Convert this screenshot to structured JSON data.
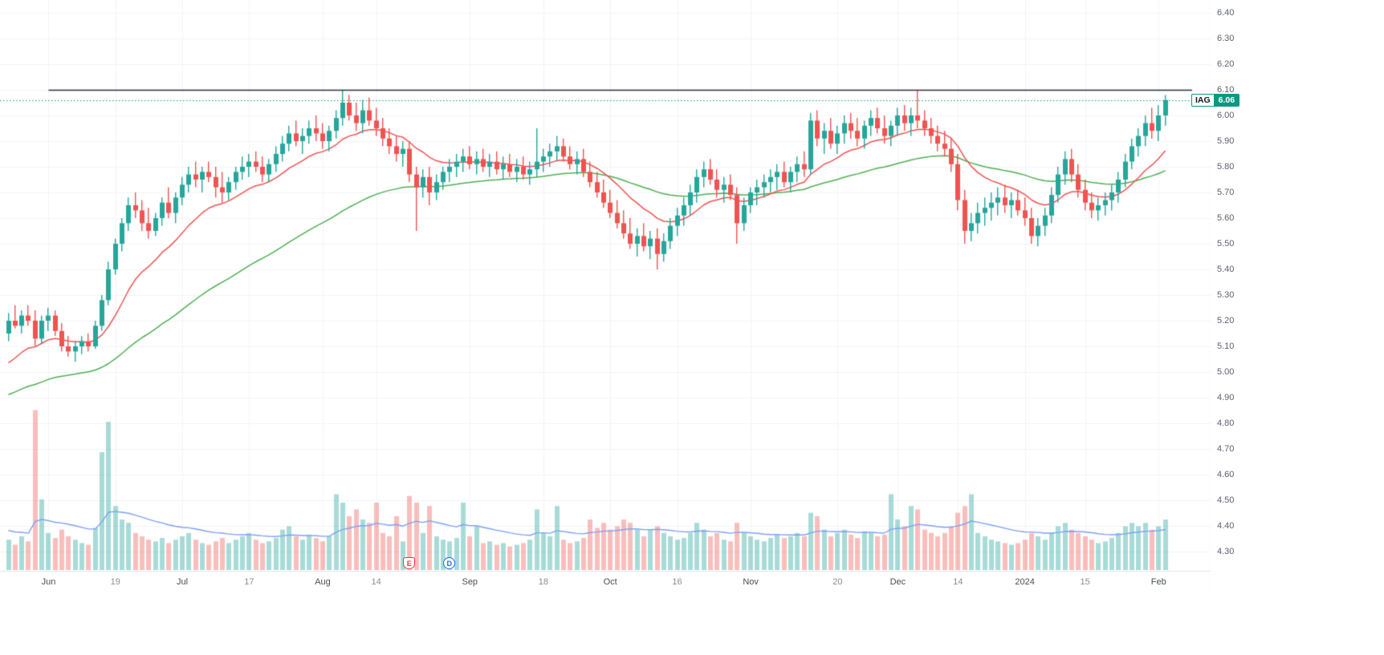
{
  "badge": {
    "ticker": "IAG",
    "price": "6.06"
  },
  "chart_data": {
    "type": "candlestick",
    "symbol": "IAG",
    "last_price": 6.06,
    "timeframe_hint": "daily, Jun 2023 - Feb 2024",
    "colors": {
      "up": "#26a69a",
      "down": "#ef5350",
      "volume_up": "rgba(38,166,154,0.40)",
      "volume_down": "rgba(239,83,80,0.38)",
      "ma_fast": "#ef5350",
      "ma_slow": "#4caf50",
      "volume_ma": "#7da0f4",
      "trendline": "#2a2e39",
      "current_price": "#089981",
      "grid": "#f1f3f8",
      "axis_separator": "#e3e6ed"
    },
    "price_axis": {
      "min": 4.3,
      "max": 6.4,
      "step": 0.1,
      "tick_labels": [
        "6.40",
        "6.30",
        "6.20",
        "6.10",
        "6.00",
        "5.90",
        "5.80",
        "5.70",
        "5.60",
        "5.50",
        "5.40",
        "5.30",
        "5.20",
        "5.10",
        "5.00",
        "4.90",
        "4.80",
        "4.70",
        "4.60",
        "4.50",
        "4.40",
        "4.30"
      ]
    },
    "time_axis": {
      "ticks": [
        {
          "i": 6,
          "label": "Jun",
          "kind": "month"
        },
        {
          "i": 16,
          "label": "19",
          "kind": "day"
        },
        {
          "i": 26,
          "label": "Jul",
          "kind": "month"
        },
        {
          "i": 36,
          "label": "17",
          "kind": "day"
        },
        {
          "i": 47,
          "label": "Aug",
          "kind": "month"
        },
        {
          "i": 55,
          "label": "14",
          "kind": "day"
        },
        {
          "i": 69,
          "label": "Sep",
          "kind": "month"
        },
        {
          "i": 80,
          "label": "18",
          "kind": "day"
        },
        {
          "i": 90,
          "label": "Oct",
          "kind": "month"
        },
        {
          "i": 100,
          "label": "16",
          "kind": "day"
        },
        {
          "i": 111,
          "label": "Nov",
          "kind": "month"
        },
        {
          "i": 124,
          "label": "20",
          "kind": "day"
        },
        {
          "i": 133,
          "label": "Dec",
          "kind": "month"
        },
        {
          "i": 142,
          "label": "14",
          "kind": "day"
        },
        {
          "i": 152,
          "label": "2024",
          "kind": "year"
        },
        {
          "i": 161,
          "label": "15",
          "kind": "day"
        },
        {
          "i": 172,
          "label": "Feb",
          "kind": "month"
        }
      ]
    },
    "horizontal_line": {
      "price": 6.1,
      "x1_index": 6,
      "x2_index": 177
    },
    "current_price_line": {
      "price": 6.06,
      "style": "dotted"
    },
    "markers": [
      {
        "i": 60,
        "label": "E",
        "kind": "earnings"
      },
      {
        "i": 66,
        "label": "D",
        "kind": "dividend"
      }
    ],
    "overlays": [
      {
        "name": "ma-fast",
        "period": 14,
        "seed": 5.01
      },
      {
        "name": "ma-slow",
        "period": 50,
        "seed": 4.9
      },
      {
        "name": "volume-ma",
        "period": 20,
        "seed": 24
      }
    ],
    "candles_ohlcv": [
      [
        5.15,
        5.23,
        5.12,
        5.2,
        18
      ],
      [
        5.2,
        5.26,
        5.17,
        5.18,
        15
      ],
      [
        5.18,
        5.24,
        5.15,
        5.22,
        20
      ],
      [
        5.22,
        5.26,
        5.18,
        5.2,
        17
      ],
      [
        5.2,
        5.24,
        5.1,
        5.13,
        95
      ],
      [
        5.13,
        5.22,
        5.11,
        5.2,
        42
      ],
      [
        5.2,
        5.25,
        5.16,
        5.22,
        22
      ],
      [
        5.22,
        5.24,
        5.14,
        5.16,
        19
      ],
      [
        5.16,
        5.19,
        5.08,
        5.1,
        24
      ],
      [
        5.1,
        5.14,
        5.06,
        5.08,
        20
      ],
      [
        5.08,
        5.12,
        5.04,
        5.1,
        18
      ],
      [
        5.1,
        5.14,
        5.07,
        5.12,
        16
      ],
      [
        5.12,
        5.15,
        5.08,
        5.1,
        15
      ],
      [
        5.1,
        5.2,
        5.09,
        5.18,
        25
      ],
      [
        5.18,
        5.3,
        5.16,
        5.28,
        70
      ],
      [
        5.28,
        5.43,
        5.26,
        5.4,
        88
      ],
      [
        5.4,
        5.52,
        5.38,
        5.5,
        38
      ],
      [
        5.5,
        5.6,
        5.47,
        5.58,
        30
      ],
      [
        5.58,
        5.68,
        5.55,
        5.65,
        28
      ],
      [
        5.65,
        5.7,
        5.6,
        5.63,
        22
      ],
      [
        5.63,
        5.67,
        5.55,
        5.58,
        20
      ],
      [
        5.58,
        5.64,
        5.52,
        5.55,
        18
      ],
      [
        5.55,
        5.62,
        5.53,
        5.6,
        17
      ],
      [
        5.6,
        5.68,
        5.57,
        5.66,
        19
      ],
      [
        5.66,
        5.72,
        5.6,
        5.62,
        16
      ],
      [
        5.62,
        5.7,
        5.58,
        5.68,
        18
      ],
      [
        5.68,
        5.76,
        5.65,
        5.73,
        20
      ],
      [
        5.73,
        5.8,
        5.7,
        5.77,
        22
      ],
      [
        5.77,
        5.82,
        5.72,
        5.75,
        18
      ],
      [
        5.75,
        5.8,
        5.7,
        5.78,
        16
      ],
      [
        5.78,
        5.82,
        5.74,
        5.76,
        15
      ],
      [
        5.76,
        5.8,
        5.68,
        5.72,
        17
      ],
      [
        5.72,
        5.78,
        5.66,
        5.7,
        19
      ],
      [
        5.7,
        5.76,
        5.67,
        5.74,
        16
      ],
      [
        5.74,
        5.8,
        5.71,
        5.78,
        18
      ],
      [
        5.78,
        5.84,
        5.75,
        5.8,
        20
      ],
      [
        5.8,
        5.85,
        5.76,
        5.82,
        22
      ],
      [
        5.82,
        5.86,
        5.78,
        5.8,
        18
      ],
      [
        5.8,
        5.84,
        5.74,
        5.77,
        16
      ],
      [
        5.77,
        5.83,
        5.74,
        5.81,
        17
      ],
      [
        5.81,
        5.88,
        5.78,
        5.85,
        19
      ],
      [
        5.85,
        5.92,
        5.82,
        5.89,
        24
      ],
      [
        5.89,
        5.96,
        5.86,
        5.93,
        26
      ],
      [
        5.93,
        5.98,
        5.88,
        5.9,
        20
      ],
      [
        5.9,
        5.95,
        5.85,
        5.92,
        18
      ],
      [
        5.92,
        5.98,
        5.89,
        5.95,
        21
      ],
      [
        5.95,
        6.0,
        5.9,
        5.93,
        19
      ],
      [
        5.93,
        5.97,
        5.87,
        5.9,
        17
      ],
      [
        5.9,
        5.96,
        5.86,
        5.94,
        20
      ],
      [
        5.94,
        6.02,
        5.91,
        5.99,
        45
      ],
      [
        5.99,
        6.1,
        5.96,
        6.05,
        40
      ],
      [
        6.05,
        6.08,
        5.98,
        6.0,
        32
      ],
      [
        6.0,
        6.05,
        5.94,
        5.97,
        36
      ],
      [
        5.97,
        6.06,
        5.93,
        6.02,
        30
      ],
      [
        6.02,
        6.07,
        5.96,
        5.98,
        28
      ],
      [
        5.98,
        6.03,
        5.92,
        5.95,
        40
      ],
      [
        5.95,
        5.99,
        5.88,
        5.91,
        22
      ],
      [
        5.91,
        5.95,
        5.85,
        5.88,
        20
      ],
      [
        5.88,
        5.92,
        5.82,
        5.85,
        32
      ],
      [
        5.85,
        5.9,
        5.8,
        5.87,
        17
      ],
      [
        5.87,
        5.9,
        5.74,
        5.77,
        44
      ],
      [
        5.77,
        5.8,
        5.55,
        5.72,
        40
      ],
      [
        5.72,
        5.79,
        5.68,
        5.76,
        22
      ],
      [
        5.76,
        5.8,
        5.65,
        5.7,
        38
      ],
      [
        5.7,
        5.77,
        5.67,
        5.74,
        20
      ],
      [
        5.74,
        5.8,
        5.71,
        5.78,
        18
      ],
      [
        5.78,
        5.83,
        5.74,
        5.8,
        17
      ],
      [
        5.8,
        5.85,
        5.76,
        5.82,
        19
      ],
      [
        5.82,
        5.87,
        5.78,
        5.84,
        40
      ],
      [
        5.84,
        5.88,
        5.79,
        5.81,
        20
      ],
      [
        5.81,
        5.86,
        5.77,
        5.83,
        26
      ],
      [
        5.83,
        5.87,
        5.78,
        5.8,
        16
      ],
      [
        5.8,
        5.85,
        5.76,
        5.82,
        17
      ],
      [
        5.82,
        5.86,
        5.77,
        5.79,
        15
      ],
      [
        5.79,
        5.84,
        5.75,
        5.81,
        16
      ],
      [
        5.81,
        5.85,
        5.76,
        5.78,
        14
      ],
      [
        5.78,
        5.83,
        5.74,
        5.8,
        15
      ],
      [
        5.8,
        5.84,
        5.75,
        5.77,
        16
      ],
      [
        5.77,
        5.82,
        5.73,
        5.79,
        18
      ],
      [
        5.79,
        5.95,
        5.76,
        5.82,
        36
      ],
      [
        5.82,
        5.87,
        5.78,
        5.84,
        22
      ],
      [
        5.84,
        5.89,
        5.8,
        5.86,
        20
      ],
      [
        5.86,
        5.92,
        5.82,
        5.88,
        38
      ],
      [
        5.88,
        5.91,
        5.82,
        5.84,
        18
      ],
      [
        5.84,
        5.88,
        5.79,
        5.81,
        16
      ],
      [
        5.81,
        5.86,
        5.77,
        5.83,
        17
      ],
      [
        5.83,
        5.87,
        5.76,
        5.78,
        19
      ],
      [
        5.78,
        5.82,
        5.72,
        5.74,
        30
      ],
      [
        5.74,
        5.78,
        5.68,
        5.7,
        25
      ],
      [
        5.7,
        5.75,
        5.64,
        5.66,
        28
      ],
      [
        5.66,
        5.71,
        5.6,
        5.62,
        24
      ],
      [
        5.62,
        5.67,
        5.56,
        5.58,
        26
      ],
      [
        5.58,
        5.63,
        5.52,
        5.54,
        30
      ],
      [
        5.54,
        5.6,
        5.48,
        5.5,
        28
      ],
      [
        5.5,
        5.56,
        5.45,
        5.53,
        24
      ],
      [
        5.53,
        5.58,
        5.47,
        5.49,
        20
      ],
      [
        5.49,
        5.55,
        5.44,
        5.52,
        24
      ],
      [
        5.52,
        5.56,
        5.4,
        5.46,
        26
      ],
      [
        5.46,
        5.54,
        5.43,
        5.51,
        22
      ],
      [
        5.51,
        5.6,
        5.48,
        5.57,
        20
      ],
      [
        5.57,
        5.64,
        5.53,
        5.61,
        18
      ],
      [
        5.61,
        5.68,
        5.57,
        5.65,
        19
      ],
      [
        5.65,
        5.73,
        5.61,
        5.7,
        22
      ],
      [
        5.7,
        5.79,
        5.66,
        5.76,
        28
      ],
      [
        5.76,
        5.82,
        5.72,
        5.79,
        24
      ],
      [
        5.79,
        5.83,
        5.73,
        5.75,
        20
      ],
      [
        5.75,
        5.79,
        5.68,
        5.71,
        22
      ],
      [
        5.71,
        5.76,
        5.66,
        5.73,
        18
      ],
      [
        5.73,
        5.77,
        5.67,
        5.69,
        17
      ],
      [
        5.69,
        5.72,
        5.5,
        5.58,
        28
      ],
      [
        5.58,
        5.68,
        5.55,
        5.65,
        22
      ],
      [
        5.65,
        5.72,
        5.62,
        5.7,
        20
      ],
      [
        5.7,
        5.75,
        5.65,
        5.72,
        18
      ],
      [
        5.72,
        5.77,
        5.68,
        5.74,
        17
      ],
      [
        5.74,
        5.79,
        5.7,
        5.76,
        19
      ],
      [
        5.76,
        5.81,
        5.71,
        5.78,
        21
      ],
      [
        5.78,
        5.82,
        5.72,
        5.74,
        19
      ],
      [
        5.74,
        5.8,
        5.7,
        5.78,
        20
      ],
      [
        5.78,
        5.84,
        5.74,
        5.81,
        22
      ],
      [
        5.81,
        5.86,
        5.76,
        5.79,
        20
      ],
      [
        5.79,
        6.01,
        5.77,
        5.98,
        34
      ],
      [
        5.98,
        6.02,
        5.88,
        5.91,
        32
      ],
      [
        5.91,
        5.97,
        5.85,
        5.94,
        24
      ],
      [
        5.94,
        5.99,
        5.87,
        5.89,
        20
      ],
      [
        5.89,
        5.96,
        5.85,
        5.93,
        22
      ],
      [
        5.93,
        6.0,
        5.89,
        5.97,
        24
      ],
      [
        5.97,
        6.01,
        5.91,
        5.94,
        21
      ],
      [
        5.94,
        5.99,
        5.88,
        5.91,
        19
      ],
      [
        5.91,
        5.98,
        5.87,
        5.96,
        23
      ],
      [
        5.96,
        6.02,
        5.92,
        5.99,
        22
      ],
      [
        5.99,
        6.03,
        5.93,
        5.95,
        20
      ],
      [
        5.95,
        6.0,
        5.89,
        5.92,
        21
      ],
      [
        5.92,
        5.98,
        5.88,
        5.96,
        45
      ],
      [
        5.96,
        6.03,
        5.92,
        6.0,
        30
      ],
      [
        6.0,
        6.04,
        5.94,
        5.97,
        26
      ],
      [
        5.97,
        6.03,
        5.92,
        6.0,
        38
      ],
      [
        6.0,
        6.1,
        5.95,
        5.98,
        36
      ],
      [
        5.98,
        6.02,
        5.92,
        5.95,
        24
      ],
      [
        5.95,
        5.99,
        5.89,
        5.92,
        22
      ],
      [
        5.92,
        5.96,
        5.86,
        5.89,
        20
      ],
      [
        5.89,
        5.94,
        5.84,
        5.87,
        22
      ],
      [
        5.87,
        5.91,
        5.78,
        5.81,
        26
      ],
      [
        5.81,
        5.85,
        5.63,
        5.67,
        34
      ],
      [
        5.67,
        5.71,
        5.5,
        5.55,
        38
      ],
      [
        5.55,
        5.62,
        5.51,
        5.58,
        45
      ],
      [
        5.58,
        5.66,
        5.54,
        5.62,
        22
      ],
      [
        5.62,
        5.68,
        5.57,
        5.64,
        20
      ],
      [
        5.64,
        5.7,
        5.59,
        5.66,
        18
      ],
      [
        5.66,
        5.72,
        5.61,
        5.68,
        17
      ],
      [
        5.68,
        5.73,
        5.62,
        5.65,
        16
      ],
      [
        5.65,
        5.7,
        5.6,
        5.67,
        15
      ],
      [
        5.67,
        5.71,
        5.61,
        5.63,
        16
      ],
      [
        5.63,
        5.68,
        5.57,
        5.6,
        18
      ],
      [
        5.6,
        5.64,
        5.5,
        5.53,
        22
      ],
      [
        5.53,
        5.6,
        5.49,
        5.57,
        20
      ],
      [
        5.57,
        5.64,
        5.53,
        5.61,
        18
      ],
      [
        5.61,
        5.72,
        5.58,
        5.69,
        22
      ],
      [
        5.69,
        5.8,
        5.66,
        5.77,
        26
      ],
      [
        5.77,
        5.86,
        5.73,
        5.83,
        28
      ],
      [
        5.83,
        5.87,
        5.74,
        5.77,
        24
      ],
      [
        5.77,
        5.81,
        5.68,
        5.71,
        22
      ],
      [
        5.71,
        5.75,
        5.63,
        5.66,
        20
      ],
      [
        5.66,
        5.7,
        5.6,
        5.63,
        18
      ],
      [
        5.63,
        5.68,
        5.59,
        5.65,
        16
      ],
      [
        5.65,
        5.7,
        5.61,
        5.67,
        17
      ],
      [
        5.67,
        5.73,
        5.63,
        5.7,
        19
      ],
      [
        5.7,
        5.78,
        5.66,
        5.75,
        22
      ],
      [
        5.75,
        5.85,
        5.72,
        5.82,
        26
      ],
      [
        5.82,
        5.91,
        5.79,
        5.88,
        28
      ],
      [
        5.88,
        5.95,
        5.84,
        5.92,
        26
      ],
      [
        5.92,
        6.0,
        5.88,
        5.97,
        28
      ],
      [
        5.97,
        6.03,
        5.91,
        5.94,
        24
      ],
      [
        5.94,
        6.04,
        5.9,
        6.0,
        26
      ],
      [
        6.0,
        6.08,
        5.96,
        6.06,
        30
      ]
    ]
  }
}
